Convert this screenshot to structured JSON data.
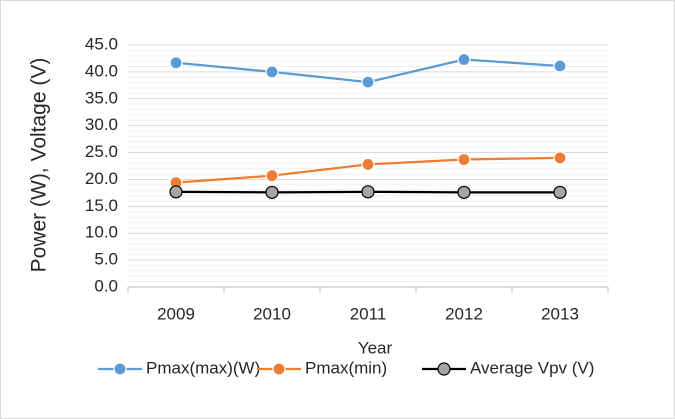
{
  "chart_data": {
    "type": "line",
    "x_label": "Year",
    "y_label": "Power (W), Voltage (V)",
    "categories": [
      "2009",
      "2010",
      "2011",
      "2012",
      "2013"
    ],
    "series": [
      {
        "name": "Pmax(max)(W)",
        "color": "#5b9bd5",
        "marker_color": "#5b9bd5",
        "values": [
          41.7,
          40.0,
          38.1,
          42.3,
          41.1
        ]
      },
      {
        "name": "Pmax(min)",
        "color": "#ed7d31",
        "marker_color": "#ed7d31",
        "values": [
          19.4,
          20.7,
          22.8,
          23.7,
          24.0
        ]
      },
      {
        "name": "Average Vpv (V)",
        "color": "#000000",
        "marker_color": "#a5a5a5",
        "values": [
          17.7,
          17.6,
          17.7,
          17.6,
          17.6
        ]
      }
    ],
    "ylim": [
      0,
      45
    ],
    "yticks": [
      {
        "value": 0,
        "label": "0.0"
      },
      {
        "value": 5,
        "label": "5.0"
      },
      {
        "value": 10,
        "label": "10.0"
      },
      {
        "value": 15,
        "label": "15.0"
      },
      {
        "value": 20,
        "label": "20.0"
      },
      {
        "value": 25,
        "label": "25.0"
      },
      {
        "value": 30,
        "label": "30.0"
      },
      {
        "value": 35,
        "label": "35.0"
      },
      {
        "value": 40,
        "label": "40.0"
      },
      {
        "value": 45,
        "label": "45.0"
      }
    ],
    "grid": true,
    "legend": "bottom"
  }
}
